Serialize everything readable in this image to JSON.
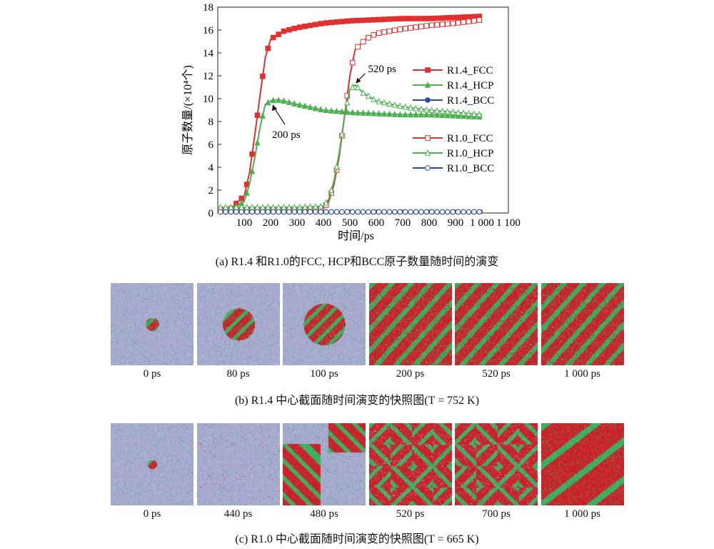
{
  "chart_data": {
    "type": "line",
    "xlabel": "时间/ps",
    "ylabel": "原子数量/(×10⁴个)",
    "xlim": [
      0,
      1100
    ],
    "ylim": [
      0,
      18
    ],
    "x_ticks": [
      "100",
      "200",
      "300",
      "400",
      "500",
      "600",
      "700",
      "800",
      "900",
      "1 000",
      "1 100"
    ],
    "y_ticks": [
      "0",
      "2",
      "4",
      "6",
      "8",
      "10",
      "12",
      "14",
      "16",
      "18"
    ],
    "legend_position": "right",
    "series": [
      {
        "name": "R1.4_FCC",
        "color": "#e03030",
        "marker": "filled-square",
        "x": [
          10,
          50,
          100,
          120,
          140,
          160,
          180,
          200,
          250,
          300,
          400,
          500,
          600,
          700,
          800,
          900,
          1000
        ],
        "y": [
          0.2,
          0.4,
          1.5,
          3.5,
          6.8,
          10.3,
          13.6,
          15.2,
          15.9,
          16.2,
          16.6,
          16.8,
          16.9,
          17.0,
          17.0,
          17.1,
          17.2
        ]
      },
      {
        "name": "R1.4_HCP",
        "color": "#4caf50",
        "marker": "filled-triangle",
        "x": [
          10,
          50,
          100,
          120,
          140,
          160,
          180,
          200,
          220,
          250,
          300,
          400,
          500,
          600,
          700,
          800,
          900,
          1000
        ],
        "y": [
          0.2,
          0.3,
          1.0,
          2.5,
          4.8,
          7.5,
          9.5,
          9.8,
          9.9,
          9.8,
          9.5,
          9.0,
          8.8,
          8.7,
          8.6,
          8.6,
          8.5,
          8.4
        ]
      },
      {
        "name": "R1.4_BCC",
        "color": "#2a4c9a",
        "marker": "filled-circle",
        "x": [
          10,
          200,
          400,
          600,
          800,
          1000
        ],
        "y": [
          0.1,
          0.1,
          0.1,
          0.1,
          0.1,
          0.1
        ]
      },
      {
        "name": "R1.0_FCC",
        "color": "#e03030",
        "marker": "open-square",
        "x": [
          10,
          100,
          200,
          300,
          400,
          420,
          440,
          460,
          480,
          500,
          520,
          560,
          600,
          700,
          800,
          900,
          1000
        ],
        "y": [
          0.3,
          0.3,
          0.3,
          0.3,
          0.4,
          1.0,
          2.5,
          5.0,
          8.5,
          12.0,
          14.3,
          15.2,
          15.7,
          16.1,
          16.4,
          16.6,
          16.9
        ]
      },
      {
        "name": "R1.0_HCP",
        "color": "#4caf50",
        "marker": "open-triangle",
        "x": [
          10,
          100,
          200,
          300,
          400,
          420,
          440,
          460,
          480,
          500,
          520,
          550,
          600,
          700,
          800,
          900,
          1000
        ],
        "y": [
          0.5,
          0.5,
          0.5,
          0.5,
          0.6,
          1.2,
          2.8,
          5.3,
          8.5,
          10.8,
          11.2,
          10.5,
          9.8,
          9.3,
          9.0,
          8.8,
          8.6
        ]
      },
      {
        "name": "R1.0_BCC",
        "color": "#2a4c9a",
        "marker": "open-circle",
        "x": [
          10,
          200,
          400,
          600,
          800,
          1000
        ],
        "y": [
          0.1,
          0.1,
          0.1,
          0.1,
          0.1,
          0.1
        ]
      }
    ],
    "annotations": [
      {
        "text": "200 ps",
        "x": 200,
        "y": 9.8
      },
      {
        "text": "520 ps",
        "x": 520,
        "y": 11.2
      }
    ]
  },
  "captions": {
    "a": "(a) R1.4 和R1.0的FCC, HCP和BCC原子数量随时间的演变",
    "b": "(b) R1.4 中心截面随时间演变的快照图(T = 752 K)",
    "c": "(c) R1.0 中心截面随时间演变的快照图(T = 665 K)"
  },
  "snapshots_b": {
    "labels": [
      "0 ps",
      "80 ps",
      "100 ps",
      "200 ps",
      "520 ps",
      "1 000 ps"
    ],
    "fcc_fraction": [
      0.02,
      0.12,
      0.2,
      0.7,
      0.65,
      0.7
    ]
  },
  "snapshots_c": {
    "labels": [
      "0 ps",
      "440 ps",
      "480 ps",
      "520 ps",
      "700 ps",
      "1 000 ps"
    ],
    "fcc_fraction": [
      0.01,
      0.04,
      0.4,
      0.45,
      0.6,
      0.7
    ]
  },
  "colors": {
    "fcc": "#c8262c",
    "hcp": "#3fae62",
    "matrix": "#a7abd0",
    "bcc": "#2a4c9a"
  }
}
